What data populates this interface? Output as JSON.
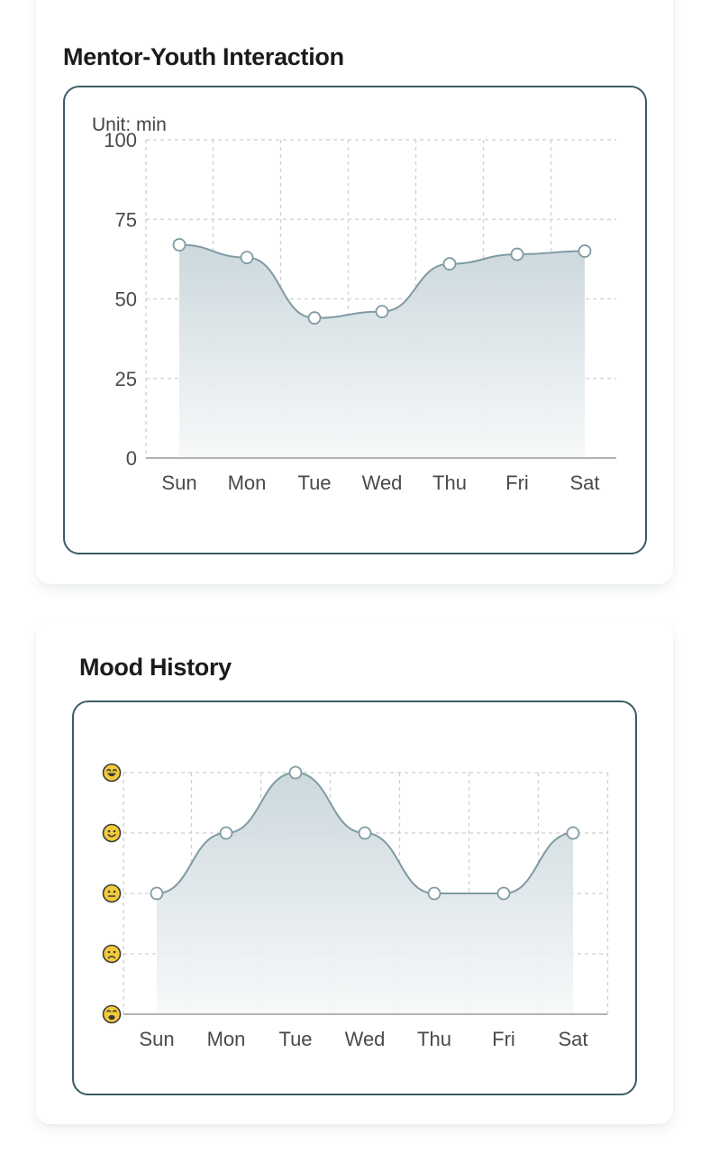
{
  "colors": {
    "line": "#7f9aa3",
    "fill_top": "#c9d6db",
    "fill_bottom": "#f6f8f9",
    "grid": "#cfcfcf",
    "axis": "#9a9a9a",
    "frame": "#3b5c66",
    "emoji_face": "#f2cb3a",
    "emoji_stroke": "#3a3a3a"
  },
  "interaction_card": {
    "title": "Mentor-Youth Interaction",
    "unit_label": "Unit: min"
  },
  "mood_card": {
    "title": "Mood History"
  },
  "chart_data": [
    {
      "type": "area",
      "title": "Mentor-Youth Interaction",
      "ylabel": "Unit: min",
      "xlabel": "",
      "categories": [
        "Sun",
        "Mon",
        "Tue",
        "Wed",
        "Thu",
        "Fri",
        "Sat"
      ],
      "values": [
        67,
        63,
        44,
        46,
        61,
        64,
        65
      ],
      "ylim": [
        0,
        100
      ],
      "yticks": [
        0,
        25,
        50,
        75,
        100
      ],
      "grid": true,
      "curve": "smooth"
    },
    {
      "type": "area",
      "title": "Mood History",
      "xlabel": "",
      "ylabel": "",
      "categories": [
        "Sun",
        "Mon",
        "Tue",
        "Wed",
        "Thu",
        "Fri",
        "Sat"
      ],
      "values": [
        3,
        4,
        5,
        4,
        3,
        3,
        4
      ],
      "ylim": [
        1,
        5
      ],
      "yticks": [
        1,
        2,
        3,
        4,
        5
      ],
      "ytick_icons": [
        "crying-face-icon",
        "sad-face-icon",
        "neutral-face-icon",
        "smiling-face-icon",
        "laughing-face-icon"
      ],
      "grid": true,
      "curve": "smooth"
    }
  ]
}
